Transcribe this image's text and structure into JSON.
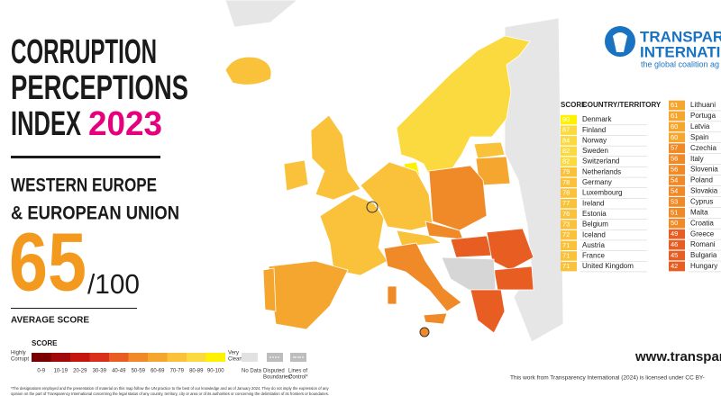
{
  "header": {
    "title_lines": [
      "CORRUPTION",
      "PERCEPTIONS",
      "INDEX"
    ],
    "year": "2023",
    "region_lines": [
      "WESTERN EUROPE",
      "& EUROPEAN UNION"
    ]
  },
  "average": {
    "score": 65,
    "out_of": "/100",
    "label": "AVERAGE SCORE"
  },
  "logo": {
    "line1": "TRANSPAR",
    "line2": "INTERNATI",
    "tagline": "the global coalition ag"
  },
  "table": {
    "score_header": "SCORE",
    "country_header": "COUNTRY/TERRITORY",
    "left": [
      {
        "score": 90,
        "country": "Denmark"
      },
      {
        "score": 87,
        "country": "Finland"
      },
      {
        "score": 84,
        "country": "Norway"
      },
      {
        "score": 82,
        "country": "Sweden"
      },
      {
        "score": 82,
        "country": "Switzerland"
      },
      {
        "score": 79,
        "country": "Netherlands"
      },
      {
        "score": 78,
        "country": "Germany"
      },
      {
        "score": 78,
        "country": "Luxembourg"
      },
      {
        "score": 77,
        "country": "Ireland"
      },
      {
        "score": 76,
        "country": "Estonia"
      },
      {
        "score": 73,
        "country": "Belgium"
      },
      {
        "score": 72,
        "country": "Iceland"
      },
      {
        "score": 71,
        "country": "Austria"
      },
      {
        "score": 71,
        "country": "France"
      },
      {
        "score": 71,
        "country": "United Kingdom"
      }
    ],
    "right": [
      {
        "score": 61,
        "country": "Lithuani"
      },
      {
        "score": 61,
        "country": "Portuga"
      },
      {
        "score": 60,
        "country": "Latvia"
      },
      {
        "score": 60,
        "country": "Spain"
      },
      {
        "score": 57,
        "country": "Czechia"
      },
      {
        "score": 56,
        "country": "Italy"
      },
      {
        "score": 56,
        "country": "Slovenia"
      },
      {
        "score": 54,
        "country": "Poland"
      },
      {
        "score": 54,
        "country": "Slovakia"
      },
      {
        "score": 53,
        "country": "Cyprus"
      },
      {
        "score": 51,
        "country": "Malta"
      },
      {
        "score": 50,
        "country": "Croatia"
      },
      {
        "score": 49,
        "country": "Greece"
      },
      {
        "score": 46,
        "country": "Romani"
      },
      {
        "score": 45,
        "country": "Bulgaria"
      },
      {
        "score": 42,
        "country": "Hungary"
      }
    ]
  },
  "legend": {
    "title": "SCORE",
    "low_label": [
      "Highly",
      "Corrupt"
    ],
    "high_label": [
      "Very",
      "Clean"
    ],
    "bins": [
      "0-9",
      "10-19",
      "20-29",
      "30-39",
      "40-49",
      "50-59",
      "60-69",
      "70-79",
      "80-89",
      "90-100"
    ],
    "colors": [
      "#7a0000",
      "#a10a0a",
      "#c4150f",
      "#d9301b",
      "#e85d22",
      "#f08a28",
      "#f5a62e",
      "#f9c23a",
      "#fbda40",
      "#fff200"
    ],
    "no_data": "No Data",
    "disputed": [
      "Disputed",
      "Boundaries*"
    ],
    "lines_of_control": [
      "Lines of",
      "Control*"
    ]
  },
  "website": "www.transparen",
  "license": "This work from Transparency International (2024) is licensed under CC BY-",
  "footnote": [
    "*The designations employed and the presentation of material on this map follow the UN practice to the best of our knowledge and as of January 2024. They do not imply the expression of any",
    "opinion on the part of Transparency International concerning the legal status of any country, territory, city or area or of its authorities or concerning the delimitation of its frontiers or boundaries."
  ]
}
